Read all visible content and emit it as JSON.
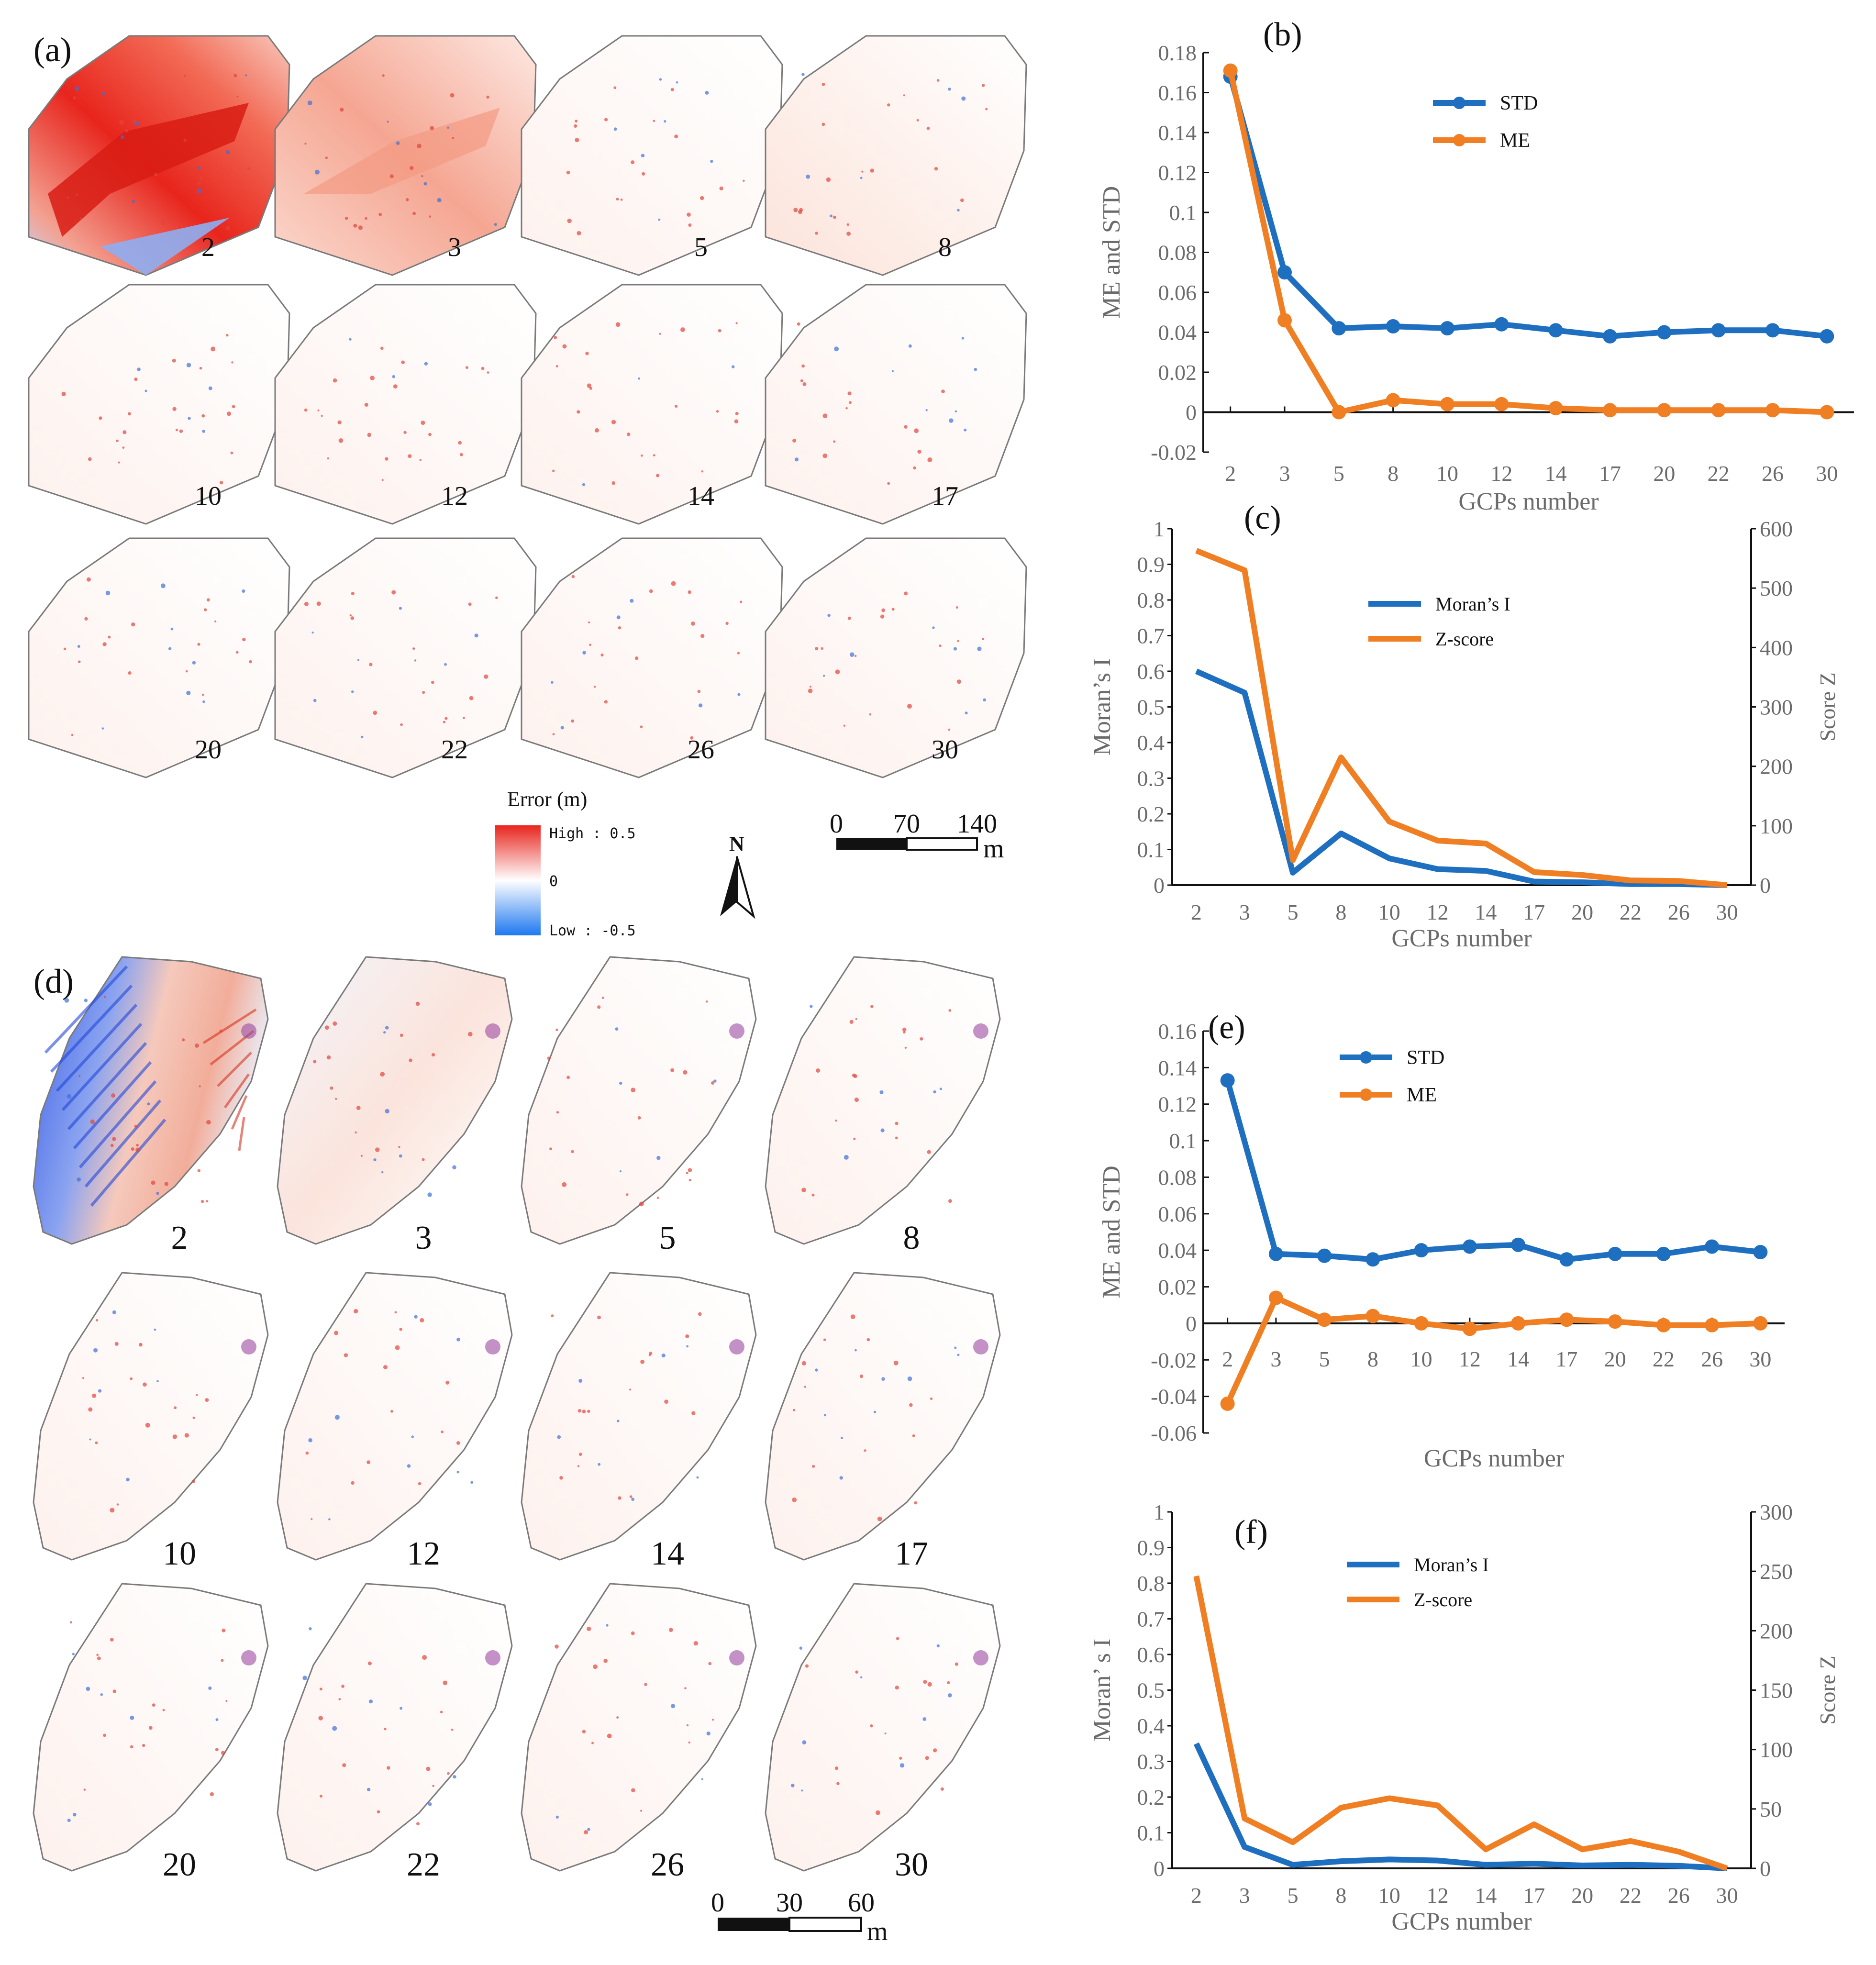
{
  "figure": {
    "panel_a": {
      "label": "(a)",
      "tile_labels": [
        "2",
        "3",
        "5",
        "8",
        "10",
        "12",
        "14",
        "17",
        "20",
        "22",
        "26",
        "30"
      ]
    },
    "panel_d": {
      "label": "(d)",
      "tile_labels": [
        "2",
        "3",
        "5",
        "8",
        "10",
        "12",
        "14",
        "17",
        "20",
        "22",
        "26",
        "30"
      ]
    },
    "legend": {
      "title": "Error (m)",
      "high": "High : 0.5",
      "mid": "0",
      "low": "Low : -0.5",
      "colors": {
        "high": "#e8251d",
        "mid": "#ffffff",
        "low": "#1e78f0"
      }
    },
    "north_arrow": {
      "label": "N"
    },
    "scalebar_a": {
      "ticks": [
        "0",
        "70",
        "140"
      ],
      "unit": "m"
    },
    "scalebar_d": {
      "ticks": [
        "0",
        "30",
        "60"
      ],
      "unit": "m"
    },
    "colors": {
      "std": "#1f6fc0",
      "me": "#f07f23",
      "moran": "#1f6fc0",
      "zscore": "#f07f23",
      "outline": "#7a7a7a"
    }
  },
  "chart_data": [
    {
      "id": "b",
      "label": "(b)",
      "type": "line",
      "categories": [
        "2",
        "3",
        "5",
        "8",
        "10",
        "12",
        "14",
        "17",
        "20",
        "22",
        "26",
        "30"
      ],
      "series": [
        {
          "name": "STD",
          "values": [
            0.168,
            0.07,
            0.042,
            0.043,
            0.042,
            0.044,
            0.041,
            0.038,
            0.04,
            0.041,
            0.041,
            0.038
          ]
        },
        {
          "name": "ME",
          "values": [
            0.171,
            0.046,
            0.0,
            0.006,
            0.004,
            0.004,
            0.002,
            0.001,
            0.001,
            0.001,
            0.001,
            0.0
          ]
        }
      ],
      "xlabel": "GCPs number",
      "ylabel": "ME and STD",
      "ylim": [
        -0.02,
        0.18
      ],
      "yticks": [
        "-0.02",
        "0",
        "0.02",
        "0.04",
        "0.06",
        "0.08",
        "0.1",
        "0.12",
        "0.14",
        "0.16",
        "0.18"
      ],
      "markers": true,
      "legend": "top-right"
    },
    {
      "id": "c",
      "label": "(c)",
      "type": "line",
      "categories": [
        "2",
        "3",
        "5",
        "8",
        "10",
        "12",
        "14",
        "17",
        "20",
        "22",
        "26",
        "30"
      ],
      "series": [
        {
          "name": "Moran’s I",
          "axis": "left",
          "values": [
            0.6,
            0.54,
            0.035,
            0.145,
            0.075,
            0.045,
            0.04,
            0.01,
            0.008,
            0.003,
            0.003,
            0.0
          ]
        },
        {
          "name": "Z-score",
          "axis": "right",
          "values": [
            563,
            530,
            42,
            215,
            107,
            75,
            70,
            22,
            17,
            8,
            7,
            0
          ]
        }
      ],
      "xlabel": "GCPs number",
      "ylabel_left": "Moran’s I",
      "ylabel_right": "Score Z",
      "ylim_left": [
        0,
        1
      ],
      "ylim_right": [
        0,
        600
      ],
      "yticks_left": [
        "0",
        "0.1",
        "0.2",
        "0.3",
        "0.4",
        "0.5",
        "0.6",
        "0.7",
        "0.8",
        "0.9",
        "1"
      ],
      "yticks_right": [
        "0",
        "100",
        "200",
        "300",
        "400",
        "500",
        "600"
      ],
      "legend": "top-center"
    },
    {
      "id": "e",
      "label": "(e)",
      "type": "line",
      "categories": [
        "2",
        "3",
        "5",
        "8",
        "10",
        "12",
        "14",
        "17",
        "20",
        "22",
        "26",
        "30"
      ],
      "series": [
        {
          "name": "STD",
          "values": [
            0.133,
            0.038,
            0.037,
            0.035,
            0.04,
            0.042,
            0.043,
            0.035,
            0.038,
            0.038,
            0.042,
            0.039
          ]
        },
        {
          "name": "ME",
          "values": [
            -0.044,
            0.014,
            0.002,
            0.004,
            0.0,
            -0.003,
            0.0,
            0.002,
            0.001,
            -0.001,
            -0.001,
            0.0
          ]
        }
      ],
      "xlabel": "GCPs number",
      "ylabel": "ME and STD",
      "ylim": [
        -0.06,
        0.16
      ],
      "yticks": [
        "-0.06",
        "-0.04",
        "-0.02",
        "0",
        "0.02",
        "0.04",
        "0.06",
        "0.08",
        "0.1",
        "0.12",
        "0.14",
        "0.16"
      ],
      "markers": true,
      "legend": "top-center"
    },
    {
      "id": "f",
      "label": "(f)",
      "type": "line",
      "categories": [
        "2",
        "3",
        "5",
        "8",
        "10",
        "12",
        "14",
        "17",
        "20",
        "22",
        "26",
        "30"
      ],
      "series": [
        {
          "name": "Moran’s I",
          "axis": "left",
          "values": [
            0.35,
            0.06,
            0.01,
            0.02,
            0.025,
            0.022,
            0.01,
            0.013,
            0.008,
            0.01,
            0.007,
            0.0
          ]
        },
        {
          "name": "Z-score",
          "axis": "right",
          "values": [
            246,
            42,
            22,
            51,
            59,
            53,
            16,
            37,
            16,
            23,
            14,
            0
          ]
        }
      ],
      "xlabel": "GCPs number",
      "ylabel_left": "Moran’ s I",
      "ylabel_right": "Score Z",
      "ylim_left": [
        0,
        1
      ],
      "ylim_right": [
        0,
        300
      ],
      "yticks_left": [
        "0",
        "0.1",
        "0.2",
        "0.3",
        "0.4",
        "0.5",
        "0.6",
        "0.7",
        "0.8",
        "0.9",
        "1"
      ],
      "yticks_right": [
        "0",
        "50",
        "100",
        "150",
        "200",
        "250",
        "300"
      ],
      "legend": "top-center"
    }
  ]
}
